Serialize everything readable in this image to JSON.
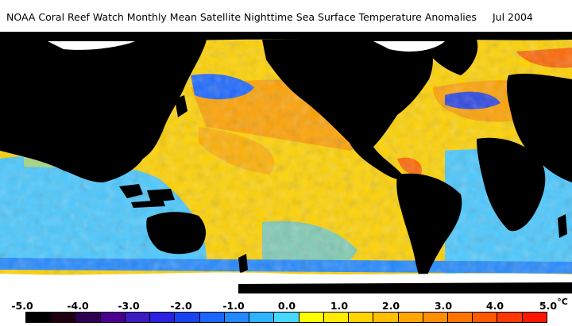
{
  "title": {
    "main": "NOAA Coral Reef Watch Monthly Mean Satellite Nighttime Sea Surface Temperature Anomalies",
    "date": "Jul 2004"
  },
  "legend": {
    "unit": "°C",
    "ticks": [
      "-5.0",
      "-4.0",
      "-3.0",
      "-2.0",
      "-1.0",
      "0.0",
      "1.0",
      "2.0",
      "3.0",
      "4.0",
      "5.0"
    ],
    "colors": [
      "#000000",
      "#200010",
      "#300050",
      "#4a0090",
      "#3c1cc0",
      "#2a22e0",
      "#1844f0",
      "#1a66ff",
      "#2288ff",
      "#2cb4ff",
      "#48d8ff",
      "#ffff00",
      "#ffea00",
      "#ffd400",
      "#ffbe00",
      "#ffa600",
      "#ff8e00",
      "#ff7400",
      "#ff5a00",
      "#ff3a00",
      "#ff1800"
    ]
  },
  "regions": {
    "land": "#000000",
    "ice": "#ffffff",
    "ocean_cool": "#48c8ff",
    "ocean_neutral": "#ffd200",
    "ocean_warm": "#ff9a00"
  }
}
